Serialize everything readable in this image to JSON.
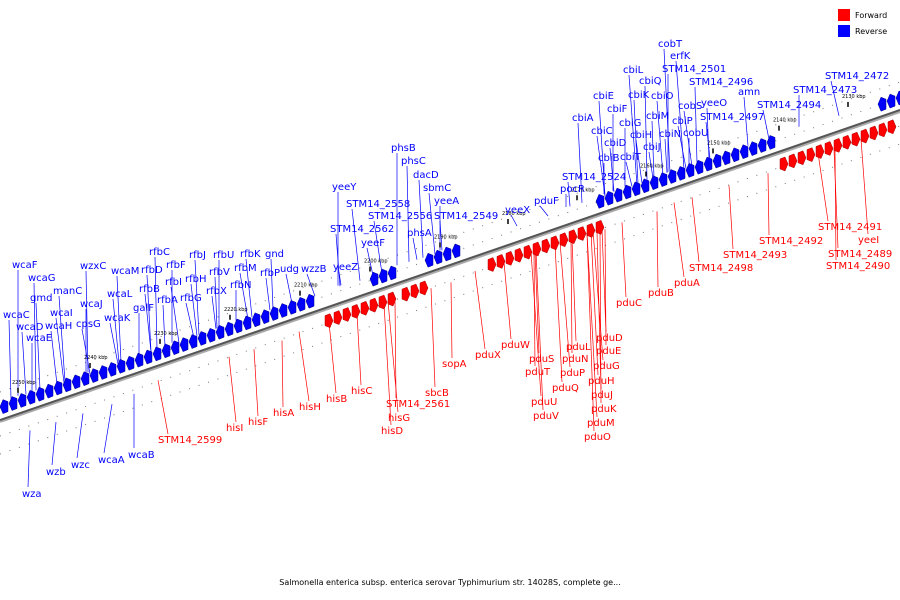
{
  "legend": {
    "forward_label": "Forward",
    "reverse_label": "Reverse",
    "forward_color": "#ff0000",
    "reverse_color": "#0000ff"
  },
  "caption": "Salmonella enterica subsp. enterica serovar Typhimurium str. 14028S, complete ge...",
  "ticks": [
    "2130 kbp",
    "2140 kbp",
    "2150 kbp",
    "2160 kbp",
    "2170 kbp",
    "2180 kbp",
    "2190 kbp",
    "2200 kbp",
    "2210 kbp",
    "2220 kbp",
    "2230 kbp",
    "2240 kbp",
    "2250 kbp"
  ],
  "reverse_labels": [
    "wcaF",
    "wcaG",
    "gmd",
    "manC",
    "wcaI",
    "wcaJ",
    "wcaC",
    "wcaD",
    "wcaH",
    "cpsG",
    "wcaE",
    "wzxC",
    "wcaM",
    "wcaL",
    "wcaK",
    "galF",
    "rfbC",
    "rfbD",
    "rfbB",
    "rfbI",
    "rfbF",
    "rfbA",
    "rfbJ",
    "rfbH",
    "rfbG",
    "rfbU",
    "rfbV",
    "rfbX",
    "rfbK",
    "rfbM",
    "rfbN",
    "gnd",
    "rfbP",
    "udg",
    "wzzB",
    "yeeY",
    "yeeZ",
    "STM14_2562",
    "yeeF",
    "STM14_2558",
    "phsB",
    "phsC",
    "dacD",
    "sbmC",
    "STM14_2556",
    "yeeA",
    "STM14_2549",
    "phsA",
    "yeeX",
    "pduF",
    "pocR",
    "STM14_2524",
    "cbiA",
    "cbiE",
    "cbiL",
    "cbiF",
    "cbiQ",
    "cbiK",
    "cbiO",
    "cbiC",
    "cbiG",
    "cbiM",
    "cbiD",
    "cbiH",
    "cbiP",
    "cbiB",
    "cbiN",
    "cbiJ",
    "cbiT",
    "cobS",
    "cobU",
    "yeeO",
    "STM14_2497",
    "cobT",
    "erfK",
    "STM14_2501",
    "STM14_2496",
    "amn",
    "STM14_2494",
    "STM14_2472",
    "STM14_2473",
    "wza",
    "wzb",
    "wzc",
    "wcaA",
    "wcaB"
  ],
  "forward_labels": [
    "STM14_2599",
    "hisI",
    "hisF",
    "hisA",
    "hisH",
    "hisB",
    "hisC",
    "STM14_2561",
    "hisG",
    "hisD",
    "sbcB",
    "sopA",
    "pduX",
    "pduW",
    "pduS",
    "pduT",
    "pduU",
    "pduV",
    "pduL",
    "pduN",
    "pduP",
    "pduQ",
    "pduJ",
    "pduK",
    "pduM",
    "pduO",
    "pduD",
    "pduE",
    "pduG",
    "pduH",
    "pduC",
    "pduB",
    "pduA",
    "STM14_2498",
    "STM14_2493",
    "STM14_2492",
    "STM14_2491",
    "yeeI",
    "STM14_2489",
    "STM14_2490"
  ]
}
